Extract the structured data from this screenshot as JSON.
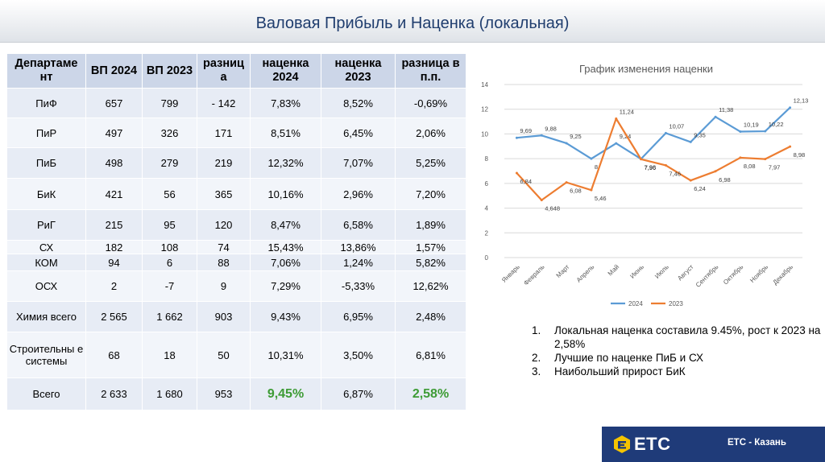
{
  "header": {
    "title": "Валовая Прибыль и Наценка (локальная)"
  },
  "table": {
    "columns": [
      "Департаме нт",
      "ВП 2024",
      "ВП 2023",
      "разниц а",
      "наценка 2024",
      "наценка 2023",
      "разница в п.п."
    ],
    "rows": [
      [
        "ПиФ",
        "657",
        "799",
        "- 142",
        "7,83%",
        "8,52%",
        "-0,69%"
      ],
      [
        "ПиР",
        "497",
        "326",
        "171",
        "8,51%",
        "6,45%",
        "2,06%"
      ],
      [
        "ПиБ",
        "498",
        "279",
        "219",
        "12,32%",
        "7,07%",
        "5,25%"
      ],
      [
        "БиК",
        "421",
        "56",
        "365",
        "10,16%",
        "2,96%",
        "7,20%"
      ],
      [
        "РиГ",
        "215",
        "95",
        "120",
        "8,47%",
        "6,58%",
        "1,89%"
      ],
      [
        "СХ",
        "182",
        "108",
        "74",
        "15,43%",
        "13,86%",
        "1,57%"
      ],
      [
        "КОМ",
        "94",
        "6",
        "88",
        "7,06%",
        "1,24%",
        "5,82%"
      ],
      [
        "ОСХ",
        "2",
        "-7",
        "9",
        "7,29%",
        "-5,33%",
        "12,62%"
      ],
      [
        "Химия всего",
        "2 565",
        "1 662",
        "903",
        "9,43%",
        "6,95%",
        "2,48%"
      ],
      [
        "Строительны е системы",
        "68",
        "18",
        "50",
        "10,31%",
        "3,50%",
        "6,81%"
      ],
      [
        "Всего",
        "2 633",
        "1 680",
        "953",
        "9,45%",
        "6,87%",
        "2,58%"
      ]
    ],
    "highlight_color": "#3d9b35"
  },
  "chart_data": {
    "type": "line",
    "title": "График изменения наценки",
    "categories": [
      "Январь",
      "Февраль",
      "Март",
      "Апрель",
      "Май",
      "Июнь",
      "Июль",
      "Август",
      "Сентябрь",
      "Октябрь",
      "Ноябрь",
      "Декабрь"
    ],
    "series": [
      {
        "name": "2024",
        "color": "#5b9bd5",
        "values": [
          9.69,
          9.88,
          9.25,
          8,
          9.24,
          7.98,
          10.07,
          9.35,
          11.38,
          10.19,
          10.22,
          12.13
        ],
        "labels": [
          "9,69",
          "9,88",
          "9,25",
          "8",
          "9,24",
          "7,98",
          "10,07",
          "9,35",
          "11,38",
          "10,19",
          "10,22",
          "12,13"
        ]
      },
      {
        "name": "2023",
        "color": "#ed7d31",
        "values": [
          6.84,
          4.648,
          6.08,
          5.46,
          11.24,
          7.96,
          7.46,
          6.24,
          6.98,
          8.08,
          7.97,
          8.98
        ],
        "labels": [
          "6,84",
          "4,648",
          "6,08",
          "5,46",
          "11,24",
          "7,96",
          "7,46",
          "6,24",
          "6,98",
          "8,08",
          "7,97",
          "8,98"
        ]
      }
    ],
    "ylim": [
      0,
      14
    ],
    "yticks": [
      0,
      2,
      4,
      6,
      8,
      10,
      12,
      14
    ],
    "grid": true,
    "legend": "bottom"
  },
  "notes": [
    {
      "num": "1.",
      "text": "Локальная наценка составила 9.45%, рост к 2023 на 2,58%"
    },
    {
      "num": "2.",
      "text": "Лучшие по наценке ПиБ и СХ"
    },
    {
      "num": "3.",
      "text": "Наибольший прирост БиК"
    }
  ],
  "footer": {
    "logo": "ETC",
    "logo_icon": "etc-logo-icon",
    "label": "ЕТС - Казань",
    "background": "#1f3b79",
    "logo_color": "#f5c400"
  }
}
